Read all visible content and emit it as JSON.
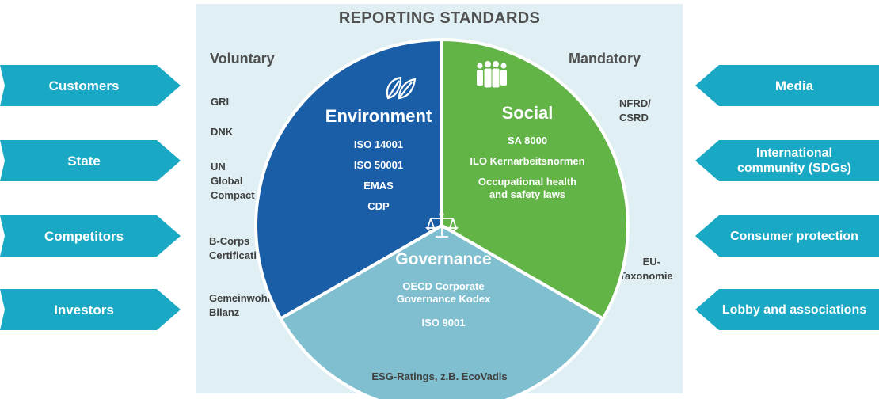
{
  "title": "REPORTING STANDARDS",
  "voluntary": {
    "heading": "Voluntary",
    "items": [
      "GRI",
      "DNK",
      "UN\nGlobal\nCompact",
      "B-Corps\nCertification",
      "Gemeinwohl\nBilanz"
    ]
  },
  "mandatory": {
    "heading": "Mandatory",
    "items": [
      "NFRD/\nCSRD",
      "EU-\nTaxonomie"
    ]
  },
  "left_stakeholders": [
    "Customers",
    "State",
    "Competitors",
    "Investors"
  ],
  "right_stakeholders": [
    "Media",
    "International\ncommunity (SDGs)",
    "Consumer protection",
    "Lobby and associations"
  ],
  "segments": {
    "environment": {
      "title": "Environment",
      "items": [
        "ISO 14001",
        "ISO 50001",
        "EMAS",
        "CDP"
      ],
      "icon": "leaf-icon"
    },
    "social": {
      "title": "Social",
      "items": [
        "SA 8000",
        "ILO Kernarbeitsnormen",
        "Occupational health\nand safety laws"
      ],
      "icon": "people-icon"
    },
    "governance": {
      "title": "Governance",
      "items": [
        "OECD Corporate\nGovernance Kodex",
        "ISO 9001"
      ],
      "icon": "scales-icon"
    }
  },
  "footer": "ESG-Ratings, z.B. EcoVadis",
  "colors": {
    "environment": "#1a5ea8",
    "social": "#62b446",
    "governance": "#7fbfd0",
    "arrow": "#1aa9c4",
    "panel": "#dfeff3"
  }
}
